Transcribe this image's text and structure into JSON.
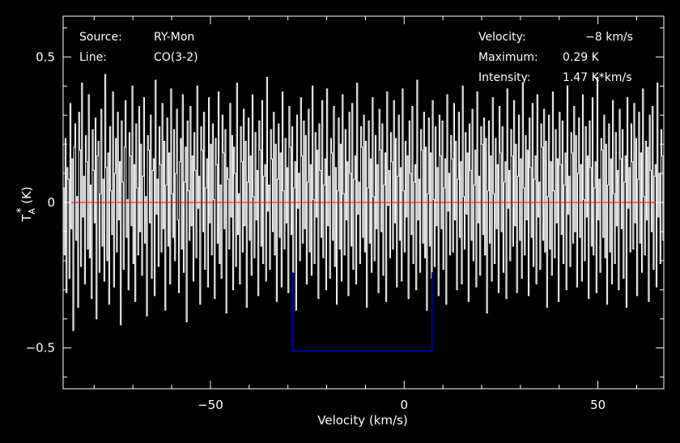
{
  "chart_data": {
    "type": "line",
    "title": "",
    "xlabel": "Velocity (km/s)",
    "ylabel": {
      "prefix": "T",
      "sub": "A",
      "sup": "*",
      "suffix": " (K)"
    },
    "xlim": [
      -88,
      67
    ],
    "ylim": [
      -0.64,
      0.64
    ],
    "xticks": [
      -50,
      0,
      50
    ],
    "xtick_labels": [
      "−50",
      "0",
      "50"
    ],
    "yticks": [
      -0.5,
      0,
      0.5
    ],
    "ytick_labels": [
      "−0.5",
      "0",
      "0.5"
    ],
    "grid": false,
    "colors": {
      "background": "#000000",
      "axes": "#ffffff",
      "spectrum": "#ffffff",
      "baseline": "#ff0000",
      "window": "#0000cc"
    },
    "baseline": {
      "y": 0
    },
    "integration_window": {
      "x_start": -28.8,
      "x_end": 7.2,
      "y_bottom": -0.51,
      "y_top": -0.24
    },
    "spectrum": {
      "name": "",
      "x_start": -88,
      "x_step": 0.25,
      "noise_rms": 0.16,
      "y": [
        0.05,
        -0.18,
        0.22,
        -0.31,
        0.12,
        0.08,
        -0.26,
        0.34,
        -0.09,
        0.15,
        -0.44,
        0.19,
        0.27,
        -0.13,
        0.02,
        -0.36,
        0.31,
        0.18,
        -0.22,
        0.41,
        -0.05,
        0.09,
        -0.28,
        0.23,
        0.14,
        -0.16,
        0.37,
        -0.19,
        0.06,
        -0.33,
        0.25,
        0.11,
        -0.07,
        0.29,
        -0.4,
        0.16,
        0.21,
        -0.24,
        0.03,
        0.32,
        -0.15,
        0.08,
        -0.27,
        0.44,
        0.12,
        -0.2,
        0.17,
        -0.35,
        0.26,
        0.04,
        -0.11,
        0.38,
        -0.29,
        0.1,
        0.22,
        -0.17,
        0.31,
        -0.06,
        0.14,
        -0.42,
        0.28,
        0.07,
        -0.23,
        0.19,
        0.35,
        -0.12,
        0.01,
        -0.3,
        0.24,
        0.16,
        -0.08,
        0.4,
        -0.21,
        0.13,
        -0.34,
        0.27,
        0.05,
        -0.18,
        0.33,
        -0.1,
        0.2,
        -0.25,
        0.09,
        0.36,
        -0.14,
        0.02,
        -0.39,
        0.23,
        0.18,
        -0.07,
        0.3,
        -0.26,
        0.11,
        0.15,
        -0.32,
        0.42,
        -0.04,
        0.08,
        -0.22,
        0.26,
        0.13,
        -0.17,
        0.34,
        -0.09,
        0.21,
        -0.37,
        0.06,
        0.29,
        -0.15,
        0.17,
        -0.28,
        0.39,
        0.03,
        -0.12,
        0.25,
        -0.2,
        0.1,
        0.32,
        -0.06,
        -0.31,
        0.14,
        0.22,
        -0.16,
        0.37,
        -0.24,
        0.07,
        0.19,
        -0.41,
        0.28,
        0.04,
        -0.13,
        0.33,
        -0.08,
        0.16,
        -0.27,
        0.24,
        0.11,
        -0.19,
        0.4,
        -0.02,
        0.09,
        -0.35,
        0.26,
        0.18,
        -0.1,
        0.31,
        -0.23,
        0.05,
        0.15,
        -0.29,
        0.36,
        -0.07,
        0.2,
        -0.18,
        0.27,
        0.01,
        -0.33,
        0.22,
        0.13,
        -0.14,
        0.38,
        -0.21,
        0.06,
        -0.26,
        0.3,
        0.17,
        -0.09,
        0.25,
        -0.38,
        0.12,
        0.08,
        -0.16,
        0.34,
        -0.05,
        0.23,
        -0.3,
        0.19,
        0.1,
        -0.22,
        0.41,
        -0.11,
        0.03,
        -0.28,
        0.26,
        0.14,
        -0.17,
        0.32,
        -0.08,
        0.21,
        -0.36,
        0.07,
        0.29,
        -0.13,
        0.16,
        -0.25,
        0.37,
        0.02,
        -0.19,
        0.24,
        -0.06,
        0.11,
        -0.32,
        0.28,
        0.18,
        -0.15,
        0.35,
        -0.21,
        0.09,
        0.13,
        -0.27,
        0.43,
        -0.03,
        0.06,
        -0.23,
        0.25,
        0.15,
        -0.1,
        0.31,
        -0.18,
        0.2,
        -0.34,
        0.08,
        0.27,
        -0.12,
        0.17,
        -0.29,
        0.38,
        0.04,
        -0.16,
        0.22,
        -0.07,
        0.12,
        -0.31,
        0.33,
        0.19,
        -0.11,
        0.26,
        -0.24,
        0.05,
        0.14,
        -0.37,
        0.3,
        -0.02,
        0.1,
        -0.2,
        0.36,
        0.16,
        -0.14,
        0.28,
        -0.09,
        0.23,
        -0.28,
        0.07,
        0.32,
        -0.17,
        0.13,
        -0.25,
        0.4,
        0.01,
        -0.21,
        0.24,
        -0.05,
        0.18,
        -0.33,
        0.27,
        0.11,
        -0.12,
        0.35,
        -0.19,
        0.06,
        0.15,
        -0.3,
        0.39,
        -0.08,
        0.09,
        -0.26,
        0.22,
        0.17,
        -0.13,
        0.33,
        -0.22,
        0.12,
        -0.35,
        0.04,
        0.29,
        -0.16,
        0.2,
        -0.27,
        0.37,
        0.03,
        -0.18,
        0.25,
        -0.06,
        0.14,
        -0.32,
        0.31,
        0.1,
        -0.15,
        0.34,
        -0.23,
        0.08,
        0.16,
        -0.28,
        0.41,
        -0.04,
        0.07,
        -0.21,
        0.26,
        0.19,
        -0.12,
        0.3,
        -0.17,
        0.21,
        -0.36,
        0.05,
        0.28,
        -0.14,
        0.15,
        -0.24,
        0.36,
        0.02,
        -0.2,
        0.23,
        -0.09,
        0.13,
        -0.31,
        0.32,
        0.18,
        -0.1,
        0.27,
        -0.25,
        0.06,
        0.17,
        -0.34,
        0.38,
        -0.01,
        0.11,
        -0.19,
        0.24,
        0.14,
        -0.16,
        0.35,
        -0.07,
        0.22,
        -0.29,
        0.09,
        0.3,
        -0.13,
        0.12,
        -0.27,
        0.39,
        0.04,
        -0.17,
        0.21,
        -0.05,
        0.16,
        -0.33,
        0.28,
        0.1,
        -0.11,
        0.33,
        -0.21,
        0.07,
        0.13,
        -0.3,
        0.42,
        -0.06,
        0.08,
        -0.24,
        0.25,
        0.18,
        -0.14,
        0.31,
        -0.19,
        0.19,
        -0.37,
        0.03,
        0.29,
        -0.15,
        0.17,
        -0.26,
        0.35,
        0.01,
        -0.22,
        0.26,
        -0.08,
        0.12,
        -0.32,
        0.3,
        0.16,
        -0.09,
        0.28,
        -0.23,
        0.05,
        0.15,
        -0.35,
        0.37,
        -0.03,
        0.1,
        -0.18,
        0.23,
        0.15,
        -0.17,
        0.34,
        -0.06,
        0.21,
        -0.3,
        0.08,
        0.31,
        -0.12,
        0.14,
        -0.28,
        0.4,
        0.02,
        -0.16,
        0.24,
        -0.04,
        0.17,
        -0.34,
        0.27,
        0.11,
        -0.13,
        0.32,
        -0.2,
        0.06,
        0.18,
        -0.29,
        0.38,
        -0.07,
        0.09,
        -0.25,
        0.26,
        0.2,
        -0.11,
        0.29,
        -0.18,
        0.22,
        -0.38,
        0.04,
        0.28,
        -0.14,
        0.16,
        -0.27,
        0.36,
        0.03,
        -0.21,
        0.22,
        -0.09,
        0.13,
        -0.31,
        0.33,
        0.17,
        -0.1,
        0.26,
        -0.24,
        0.07,
        0.14,
        -0.33,
        0.39,
        -0.02,
        0.11,
        -0.2,
        0.25,
        0.16,
        -0.15,
        0.35,
        -0.08,
        0.2,
        -0.31,
        0.09,
        0.3,
        -0.13,
        0.15,
        -0.26,
        0.41,
        0.05,
        -0.18,
        0.23,
        -0.06,
        0.18,
        -0.32,
        0.29,
        0.12,
        -0.12,
        0.34,
        -0.22,
        0.08,
        0.16,
        -0.28,
        0.37,
        -0.05,
        0.07,
        -0.23,
        0.27,
        0.19,
        -0.13,
        0.32,
        -0.17,
        0.21,
        -0.36,
        0.02,
        0.3,
        -0.16,
        0.14,
        -0.25,
        0.38,
        0.04,
        -0.19,
        0.25,
        -0.07,
        0.15,
        -0.34,
        0.31,
        0.13,
        -0.11,
        0.28,
        -0.21,
        0.06,
        0.17,
        -0.3,
        0.4,
        -0.04,
        0.09,
        -0.22,
        0.24,
        0.17,
        -0.14,
        0.33,
        -0.1,
        0.23,
        -0.29,
        0.1,
        0.29,
        -0.12,
        0.13,
        -0.27,
        0.37,
        0.01,
        -0.2,
        0.26,
        -0.05,
        0.16,
        -0.33,
        0.28,
        0.12,
        -0.15,
        0.36,
        -0.18,
        0.05,
        0.14,
        -0.31,
        0.43,
        -0.06,
        0.08,
        -0.24,
        0.22,
        0.18,
        -0.12,
        0.3,
        -0.19,
        0.2,
        -0.35,
        0.06,
        0.27,
        -0.17,
        0.15,
        -0.28,
        0.35,
        0.03,
        -0.21,
        0.24,
        -0.08,
        0.11,
        -0.3,
        0.32,
        0.15,
        -0.09,
        0.25,
        -0.26,
        0.07,
        0.16,
        -0.36,
        0.36,
        -0.02,
        0.12,
        -0.17,
        0.27,
        0.14,
        -0.16,
        0.34,
        -0.07,
        0.22,
        -0.32,
        0.08,
        0.31,
        -0.14,
        0.17,
        -0.24,
        0.39,
        0.02,
        -0.18,
        0.21,
        -0.06,
        0.19,
        -0.34,
        0.3,
        0.11,
        -0.1,
        0.33,
        -0.23,
        0.09,
        0.13,
        -0.29,
        0.41,
        -0.05,
        0.1,
        -0.21,
        0.25,
        0.16,
        -0.13,
        0.31,
        -0.16,
        0.18,
        -0.37,
        0.04,
        0.28,
        -0.15,
        0.14,
        -0.27,
        0.38,
        0.05,
        -0.2,
        0.23,
        -0.09,
        0.14,
        -0.31,
        0.29,
        0.17,
        -0.11,
        0.27,
        -0.22,
        0.06,
        0.18,
        -0.33,
        0.37,
        -0.03,
        0.07,
        -0.19,
        0.26,
        0.15,
        -0.17,
        0.35,
        -0.08,
        0.21,
        -0.3,
        0.09,
        0.32,
        -0.13,
        0.16,
        -0.26,
        0.4,
        0.01,
        -0.17,
        0.22,
        -0.04,
        0.17,
        -0.35,
        0.27,
        0.1,
        -0.12,
        0.34,
        -0.2,
        0.07,
        0.15,
        -0.28,
        0.39,
        -0.06,
        0.08,
        -0.23,
        0.24,
        0.19,
        -0.14,
        0.3,
        -0.18,
        0.23,
        -0.36,
        0.03,
        0.29,
        -0.16,
        0.13,
        -0.25,
        0.36,
        0.04,
        -0.22,
        0.25,
        -0.07,
        0.12,
        -0.32,
        0.31,
        0.16,
        -0.1,
        0.28,
        -0.24,
        0.05,
        0.17,
        -0.34,
        0.38,
        -0.02,
        0.11,
        -0.2,
        0.23,
        0.17,
        -0.15,
        0.33,
        -0.09,
        0.2,
        -0.29,
        0.1,
        0.3,
        -0.12,
        0.14,
        -0.28,
        0.37,
        0.03,
        -0.19,
        0.26,
        -0.05,
        0.15,
        -0.33,
        0.28,
        0.13,
        -0.13,
        0.35,
        -0.21,
        0.06,
        0.16,
        -0.3,
        0.42,
        -0.04,
        0.09,
        -0.24,
        0.27,
        0.18,
        -0.11,
        0.32,
        -0.17,
        0.22,
        -0.35,
        0.05,
        0.28,
        -0.14,
        0.15,
        -0.27,
        0.39,
        0.02,
        -0.18,
        0.24,
        -0.08,
        0.13,
        -0.31,
        0.3,
        0.14,
        -0.09,
        0.26,
        -0.23,
        0.08,
        0.14,
        -0.32,
        0.36,
        -0.03,
        0.1,
        -0.21,
        0.25,
        0.16,
        -0.16,
        0.34,
        -0.06,
        0.19,
        -0.3,
        0.07,
        0.31,
        -0.15,
        0.16,
        -0.26,
        0.38,
        0.04,
        -0.2,
        0.22,
        -0.07,
        0.18,
        -0.34,
        0.29,
        0.12,
        -0.12,
        0.33,
        -0.22,
        0.07,
        0.17,
        -0.29,
        0.4,
        -0.05,
        0.08,
        -0.22,
        0.24,
        0.17,
        -0.13,
        0.31,
        -0.18,
        0.21,
        -0.37,
        0.03,
        0.3,
        -0.13,
        0.14,
        -0.25,
        0.37,
        0.02,
        -0.21,
        0.25,
        -0.06,
        0.14,
        -0.33,
        0.32,
        0.15,
        -0.1,
        0.27,
        -0.24,
        0.06,
        0.15,
        -0.35,
        0.39,
        -0.01,
        0.11,
        -0.19,
        0.26,
        0.16,
        -0.14,
        0.34,
        -0.08,
        0.22,
        -0.31,
        0.09,
        0.29,
        -0.12,
        0.17,
        -0.28,
        0.41,
        0.03,
        -0.16,
        0.23,
        -0.05,
        0.16,
        -0.32,
        0.27,
        0.11,
        -0.14,
        0.36,
        -0.2,
        0.05,
        0.13,
        -0.3,
        0.38,
        -0.06,
        0.09,
        -0.23,
        0.25,
        0.2,
        -0.12,
        0.29,
        -0.19,
        0.2,
        -0.36,
        0.04,
        0.28,
        -0.17,
        0.15,
        -0.27,
        0.35,
        0.05,
        -0.19,
        0.24,
        -0.09,
        0.12,
        -0.3,
        0.31,
        0.17,
        -0.11,
        0.26,
        -0.25,
        0.08,
        0.16,
        -0.33,
        0.37,
        -0.04,
        0.1,
        -0.18,
        0.24,
        0.15,
        -0.15,
        0.33,
        -0.07,
        0.21,
        -0.29,
        0.08,
        0.3,
        -0.14,
        0.13,
        -0.26,
        0.39,
        0.01,
        -0.18,
        0.22,
        -0.06,
        0.17,
        -0.34,
        0.28,
        0.12,
        -0.11,
        0.34,
        -0.21,
        0.07,
        0.16,
        -0.31,
        0.4,
        -0.05,
        0.08,
        -0.24,
        0.26,
        0.18,
        -0.13,
        0.32,
        -0.16,
        0.22,
        -0.38,
        0.02,
        0.29,
        -0.15,
        0.14,
        -0.28,
        0.36,
        0.04,
        -0.2,
        0.25,
        -0.08,
        0.13,
        -0.32,
        0.3,
        0.16,
        -0.09,
        0.28,
        -0.22,
        0.06,
        0.18,
        -0.3,
        0.38,
        -0.03,
        0.09,
        -0.21,
        0.25,
        0.17,
        -0.14,
        0.35,
        -0.09,
        0.19,
        -0.3,
        0.1,
        0.29,
        -0.13,
        0.15,
        -0.27,
        0.37,
        0.02
      ]
    }
  },
  "info_left": [
    {
      "key": "Source:",
      "value": "RY-Mon"
    },
    {
      "key": "Line:",
      "value": "CO(3-2)"
    }
  ],
  "info_right": [
    {
      "key": "Velocity:",
      "value": "−8 km/s"
    },
    {
      "key": "Maximum:",
      "value": "0.29 K"
    },
    {
      "key": "Intensity:",
      "value": "1.47 K*km/s"
    }
  ]
}
